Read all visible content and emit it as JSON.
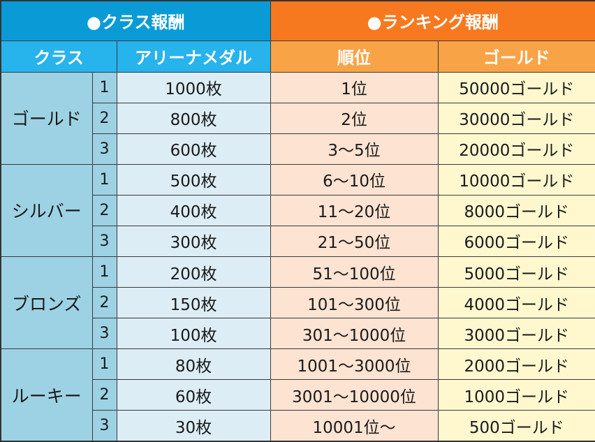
{
  "headers": {
    "class_reward": "●クラス報酬",
    "ranking_reward": "●ランキング報酬",
    "col_class": "クラス",
    "col_medal": "アリーナメダル",
    "col_order": "順位",
    "col_gold": "ゴールド"
  },
  "groups": [
    {
      "name": "ゴールド",
      "rows": [
        {
          "rank": "1",
          "medal": "1000枚",
          "order": "1位",
          "gold": "50000ゴールド"
        },
        {
          "rank": "2",
          "medal": "800枚",
          "order": "2位",
          "gold": "30000ゴールド"
        },
        {
          "rank": "3",
          "medal": "600枚",
          "order": "3〜5位",
          "gold": "20000ゴールド"
        }
      ]
    },
    {
      "name": "シルバー",
      "rows": [
        {
          "rank": "1",
          "medal": "500枚",
          "order": "6〜10位",
          "gold": "10000ゴールド"
        },
        {
          "rank": "2",
          "medal": "400枚",
          "order": "11〜20位",
          "gold": "8000ゴールド"
        },
        {
          "rank": "3",
          "medal": "300枚",
          "order": "21〜50位",
          "gold": "6000ゴールド"
        }
      ]
    },
    {
      "name": "ブロンズ",
      "rows": [
        {
          "rank": "1",
          "medal": "200枚",
          "order": "51〜100位",
          "gold": "5000ゴールド"
        },
        {
          "rank": "2",
          "medal": "150枚",
          "order": "101〜300位",
          "gold": "4000ゴールド"
        },
        {
          "rank": "3",
          "medal": "100枚",
          "order": "301〜1000位",
          "gold": "3000ゴールド"
        }
      ]
    },
    {
      "name": "ルーキー",
      "rows": [
        {
          "rank": "1",
          "medal": "80枚",
          "order": "1001〜3000位",
          "gold": "2000ゴールド"
        },
        {
          "rank": "2",
          "medal": "60枚",
          "order": "3001〜10000位",
          "gold": "1000ゴールド"
        },
        {
          "rank": "3",
          "medal": "30枚",
          "order": "10001位〜",
          "gold": "500ゴールド"
        }
      ]
    }
  ]
}
